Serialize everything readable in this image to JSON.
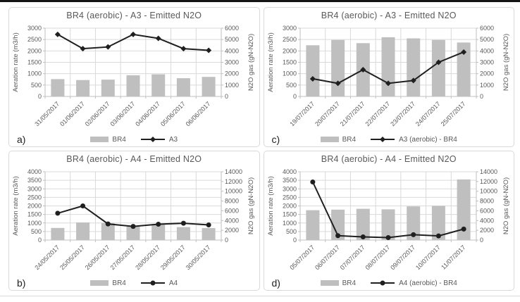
{
  "figure": {
    "panel_order": [
      "a",
      "c",
      "b",
      "d"
    ]
  },
  "colors": {
    "bar": "#bfbfbf",
    "line": "#1f1f1f",
    "grid": "#d9d9d9",
    "axis_line": "#bfbfbf",
    "tick_text": "#595959",
    "title_text": "#595959",
    "panel_border": "#d9d9d9",
    "top_bar": "#151515"
  },
  "chart_data": [
    {
      "id": "a",
      "panel_label": "a)",
      "type": "bar+line",
      "title": "BR4 (aerobic) - A3 - Emitted N2O",
      "categories": [
        "31/05/2017",
        "01/06/2017",
        "02/06/2017",
        "03/06/2017",
        "04/06/2017",
        "05/06/2017",
        "06/06/2017"
      ],
      "left_axis": {
        "label": "Aeration rate (m3/h)",
        "min": 0,
        "max": 3000,
        "step": 500
      },
      "right_axis": {
        "label": "N2O gas (gN-N2O)",
        "min": 0,
        "max": 6000,
        "step": 1000
      },
      "grid": true,
      "legend_position": "bottom",
      "series": [
        {
          "name": "BR4",
          "type": "bar",
          "axis": "left",
          "values": [
            760,
            720,
            740,
            930,
            970,
            800,
            860
          ]
        },
        {
          "name": "A3",
          "type": "line",
          "axis": "right",
          "marker": "diamond",
          "values": [
            5450,
            4200,
            4350,
            5450,
            5100,
            4200,
            4050
          ]
        }
      ]
    },
    {
      "id": "c",
      "panel_label": "c)",
      "type": "bar+line",
      "title": "BR4 (aerobic) - A3 - Emitted N2O",
      "categories": [
        "19/07/2017",
        "20/07/2017",
        "21/07/2017",
        "22/07/2017",
        "23/07/2017",
        "24/07/2017",
        "25/07/2017"
      ],
      "left_axis": {
        "label": "Aeration rate (m3/h)",
        "min": 0,
        "max": 3000,
        "step": 500
      },
      "right_axis": {
        "label": "N2O gas (gN-N2O)",
        "min": 0,
        "max": 6000,
        "step": 1000
      },
      "grid": true,
      "legend_position": "bottom",
      "series": [
        {
          "name": "BR4",
          "type": "bar",
          "axis": "left",
          "values": [
            2250,
            2480,
            2340,
            2600,
            2550,
            2480,
            2370
          ]
        },
        {
          "name": "A3 (aerobic) - BR4",
          "type": "line",
          "axis": "right",
          "marker": "diamond",
          "values": [
            1550,
            1150,
            2350,
            1150,
            1400,
            3000,
            3900
          ]
        }
      ]
    },
    {
      "id": "b",
      "panel_label": "b)",
      "type": "bar+line",
      "title": "BR4 (aerobic) - A4 - Emitted N2O",
      "categories": [
        "24/05/2017",
        "25/05/2017",
        "26/05/2017",
        "27/05/2017",
        "28/05/2017",
        "29/05/2017",
        "30/05/2017"
      ],
      "left_axis": {
        "label": "Aeration rate (m3/h)",
        "min": 0,
        "max": 4000,
        "step": 500
      },
      "right_axis": {
        "label": "N2O gas (gN-N2O)",
        "min": 0,
        "max": 14000,
        "step": 2000
      },
      "grid": true,
      "legend_position": "bottom",
      "series": [
        {
          "name": "BR4",
          "type": "bar",
          "axis": "left",
          "values": [
            710,
            1030,
            1000,
            790,
            930,
            760,
            700
          ]
        },
        {
          "name": "A4",
          "type": "line",
          "axis": "right",
          "marker": "circle",
          "values": [
            5500,
            7000,
            3300,
            2800,
            3250,
            3450,
            3100
          ]
        }
      ]
    },
    {
      "id": "d",
      "panel_label": "d)",
      "type": "bar+line",
      "title": "BR4 (aerobic) - A4 - Emitted N2O",
      "categories": [
        "05/07/2017",
        "06/07/2017",
        "07/07/2017",
        "08/07/2017",
        "09/07/2017",
        "10/07/2017",
        "11/07/2017"
      ],
      "left_axis": {
        "label": "Aeration rate (m3/h)",
        "min": 0,
        "max": 4000,
        "step": 500
      },
      "right_axis": {
        "label": "N2O gas (gN-N2O)",
        "min": 0,
        "max": 14000,
        "step": 2000
      },
      "grid": true,
      "legend_position": "bottom",
      "series": [
        {
          "name": "BR4",
          "type": "bar",
          "axis": "left",
          "values": [
            1750,
            1780,
            1830,
            1800,
            1970,
            2000,
            3550
          ]
        },
        {
          "name": "A4 (aerobic) - BR4",
          "type": "line",
          "axis": "right",
          "marker": "circle",
          "values": [
            11900,
            900,
            650,
            500,
            1100,
            850,
            2250
          ]
        }
      ]
    }
  ]
}
